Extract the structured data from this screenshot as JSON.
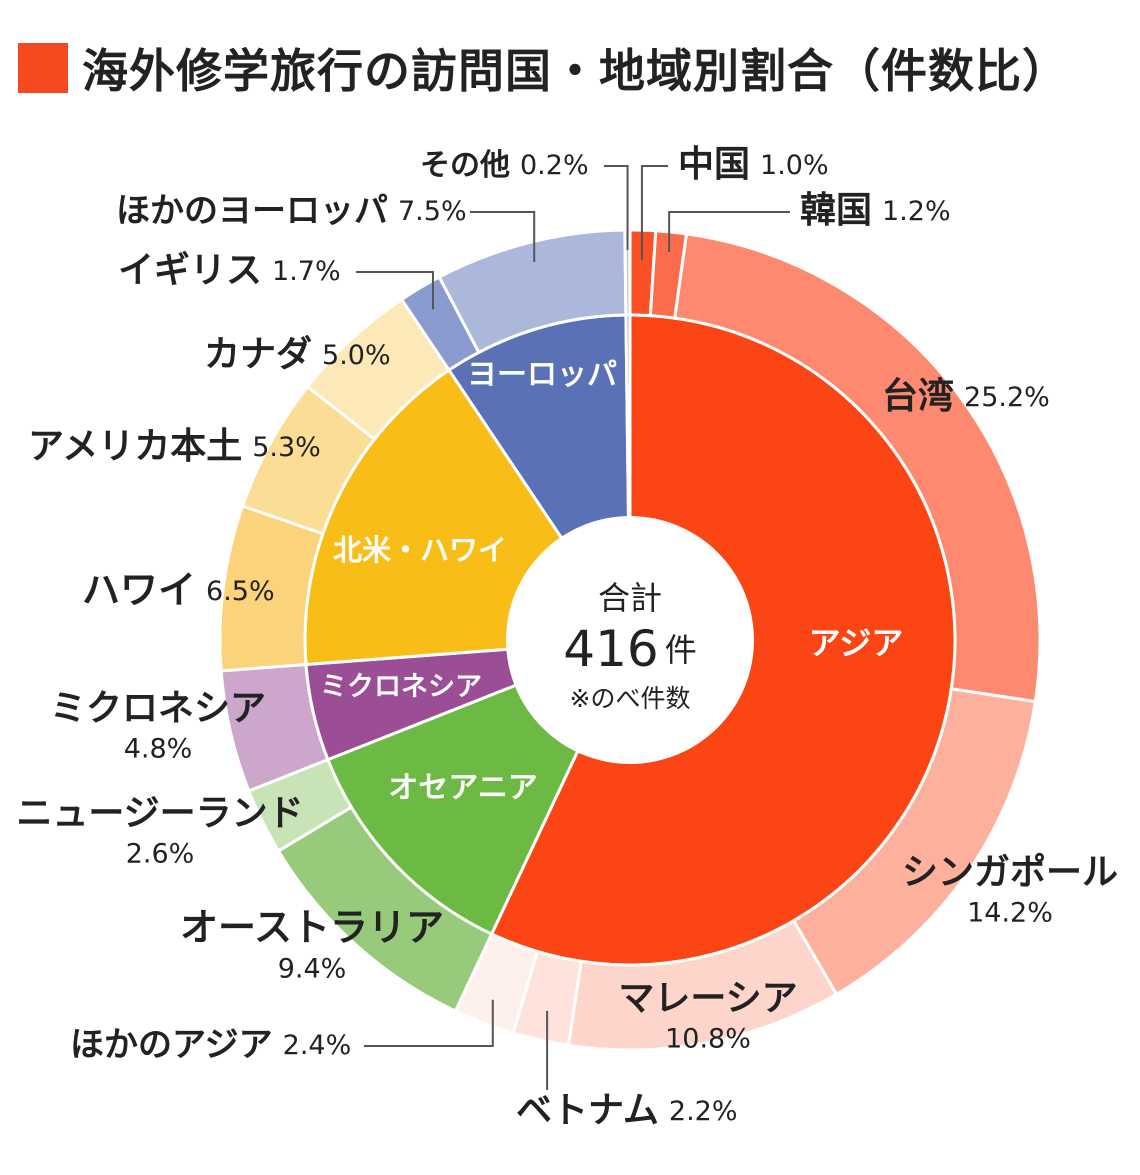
{
  "title": "海外修学旅行の訪問国・地域別割合（件数比）",
  "colors": {
    "title_square": "#f54a20"
  },
  "chart_data": {
    "type": "pie",
    "subtype": "nested-donut",
    "center": {
      "label": "合計",
      "total_value": "416",
      "total_unit": "件",
      "note": "※のべ件数"
    },
    "inner_ring": [
      {
        "name": "アジア",
        "value": 57.0,
        "color": "#fc4514"
      },
      {
        "name": "オセアニア",
        "value": 12.0,
        "color": "#6cb944"
      },
      {
        "name": "ミクロネシア",
        "value": 4.8,
        "color": "#9b4e96"
      },
      {
        "name": "北米・ハワイ",
        "value": 16.8,
        "color": "#f8be17"
      },
      {
        "name": "ヨーロッパ",
        "value": 9.2,
        "color": "#5b71b5"
      },
      {
        "name": "その他",
        "value": 0.2,
        "color": "#b3b3b3"
      }
    ],
    "outer_ring": [
      {
        "name": "中国",
        "value": 1.0,
        "label": "1.0%",
        "color": "#fc5026"
      },
      {
        "name": "韓国",
        "value": 1.2,
        "label": "1.2%",
        "color": "#fc6c4b"
      },
      {
        "name": "台湾",
        "value": 25.2,
        "label": "25.2%",
        "color": "#fd8a70"
      },
      {
        "name": "シンガポール",
        "value": 14.2,
        "label": "14.2%",
        "color": "#fdb19d"
      },
      {
        "name": "マレーシア",
        "value": 10.8,
        "label": "10.8%",
        "color": "#fdd5ca"
      },
      {
        "name": "ベトナム",
        "value": 2.2,
        "label": "2.2%",
        "color": "#fde3dc"
      },
      {
        "name": "ほかのアジア",
        "value": 2.4,
        "label": "2.4%",
        "color": "#fef0ec"
      },
      {
        "name": "オーストラリア",
        "value": 9.4,
        "label": "9.4%",
        "color": "#98ca7b"
      },
      {
        "name": "ニュージーランド",
        "value": 2.6,
        "label": "2.6%",
        "color": "#c8e4b7"
      },
      {
        "name": "ミクロネシア",
        "value": 4.8,
        "label": "4.8%",
        "color": "#cda6cc"
      },
      {
        "name": "ハワイ",
        "value": 6.5,
        "label": "6.5%",
        "color": "#fbd37a"
      },
      {
        "name": "アメリカ本土",
        "value": 5.3,
        "label": "5.3%",
        "color": "#fcdd96"
      },
      {
        "name": "カナダ",
        "value": 5.0,
        "label": "5.0%",
        "color": "#fde9b7"
      },
      {
        "name": "イギリス",
        "value": 1.7,
        "label": "1.7%",
        "color": "#8a9ccf"
      },
      {
        "name": "ほかのヨーロッパ",
        "value": 7.5,
        "label": "7.5%",
        "color": "#abb8dc"
      },
      {
        "name": "その他",
        "value": 0.2,
        "label": "0.2%",
        "color": "#cccccc"
      }
    ]
  }
}
